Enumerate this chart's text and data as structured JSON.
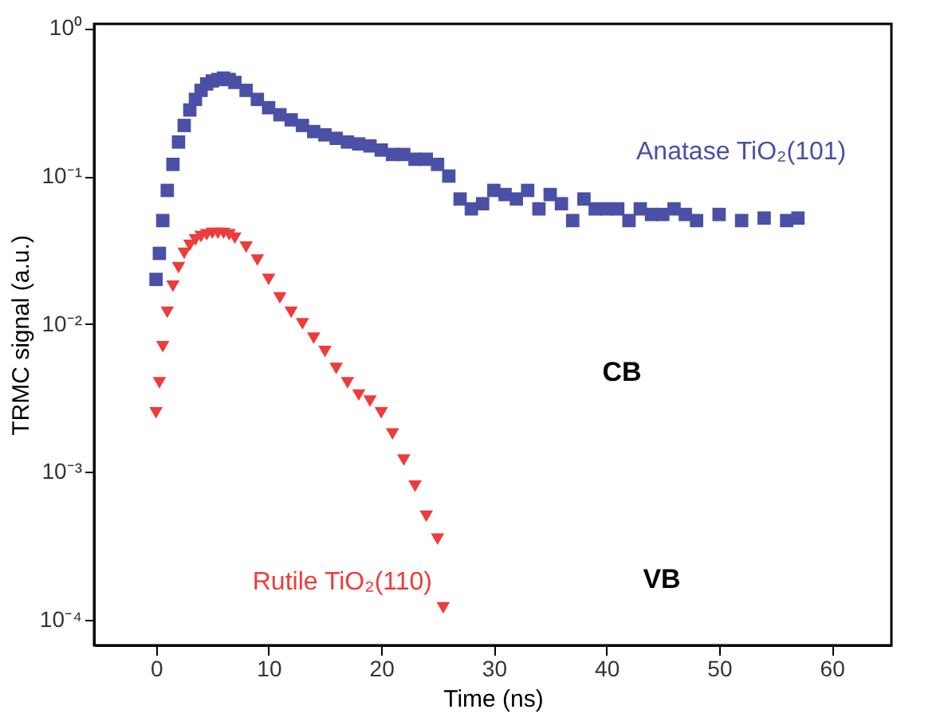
{
  "chart_data": {
    "type": "scatter",
    "xlabel": "Time (ns)",
    "ylabel": "TRMC signal (a.u.)",
    "log": "y",
    "grid": false,
    "xlim": [
      -5.5,
      65.3
    ],
    "xticks": [
      0,
      10,
      20,
      30,
      40,
      50,
      60
    ],
    "ylim": [
      6.7e-05,
      1.07
    ],
    "yticks": [
      {
        "value": 0.0001,
        "label": "10⁻⁴"
      },
      {
        "value": 0.001,
        "label": "10⁻³"
      },
      {
        "value": 0.01,
        "label": "10⁻²"
      },
      {
        "value": 0.1,
        "label": "10⁻¹"
      },
      {
        "value": 1,
        "label": "10⁰"
      }
    ],
    "annotations": [
      "CB",
      "VB"
    ],
    "series": [
      {
        "name": "Anatase TiO₂(101)",
        "color": "#4a50a6",
        "marker": "square",
        "x": [
          0,
          0.3,
          0.6,
          1,
          1.5,
          2,
          2.5,
          3,
          3.5,
          4,
          4.5,
          5,
          5.5,
          6,
          6.5,
          7,
          8,
          9,
          10,
          11,
          12,
          13,
          14,
          15,
          16,
          17,
          18,
          19,
          20,
          21,
          22,
          23,
          24,
          25,
          26,
          27,
          28,
          29,
          30,
          31,
          32,
          33,
          34,
          35,
          36,
          37,
          38,
          39,
          40,
          41,
          42,
          43,
          44,
          45,
          46,
          47,
          48,
          50,
          52,
          54,
          56,
          57
        ],
        "values": [
          0.02,
          0.03,
          0.05,
          0.08,
          0.12,
          0.17,
          0.22,
          0.28,
          0.33,
          0.38,
          0.42,
          0.44,
          0.45,
          0.46,
          0.45,
          0.43,
          0.38,
          0.33,
          0.29,
          0.26,
          0.24,
          0.22,
          0.2,
          0.19,
          0.18,
          0.17,
          0.165,
          0.16,
          0.15,
          0.14,
          0.14,
          0.13,
          0.13,
          0.12,
          0.1,
          0.07,
          0.06,
          0.065,
          0.08,
          0.075,
          0.07,
          0.08,
          0.06,
          0.075,
          0.065,
          0.05,
          0.07,
          0.06,
          0.06,
          0.06,
          0.05,
          0.06,
          0.055,
          0.055,
          0.06,
          0.055,
          0.05,
          0.055,
          0.05,
          0.052,
          0.05,
          0.052
        ]
      },
      {
        "name": "Rutile TiO₂(110)",
        "color": "#ee3b3b",
        "marker": "triangle",
        "x": [
          0,
          0.3,
          0.6,
          1,
          1.5,
          2,
          2.5,
          3,
          3.5,
          4,
          4.5,
          5,
          5.5,
          6,
          6.5,
          7,
          8,
          9,
          10,
          11,
          12,
          13,
          14,
          15,
          16,
          17,
          18,
          19,
          20,
          21,
          22,
          23,
          24,
          25,
          25.5
        ],
        "values": [
          0.0025,
          0.004,
          0.007,
          0.012,
          0.018,
          0.024,
          0.03,
          0.034,
          0.037,
          0.039,
          0.04,
          0.041,
          0.041,
          0.041,
          0.04,
          0.038,
          0.033,
          0.027,
          0.02,
          0.015,
          0.012,
          0.01,
          0.008,
          0.0065,
          0.005,
          0.004,
          0.0033,
          0.003,
          0.0025,
          0.0018,
          0.0012,
          0.0008,
          0.0005,
          0.00035,
          0.00012
        ]
      }
    ]
  }
}
